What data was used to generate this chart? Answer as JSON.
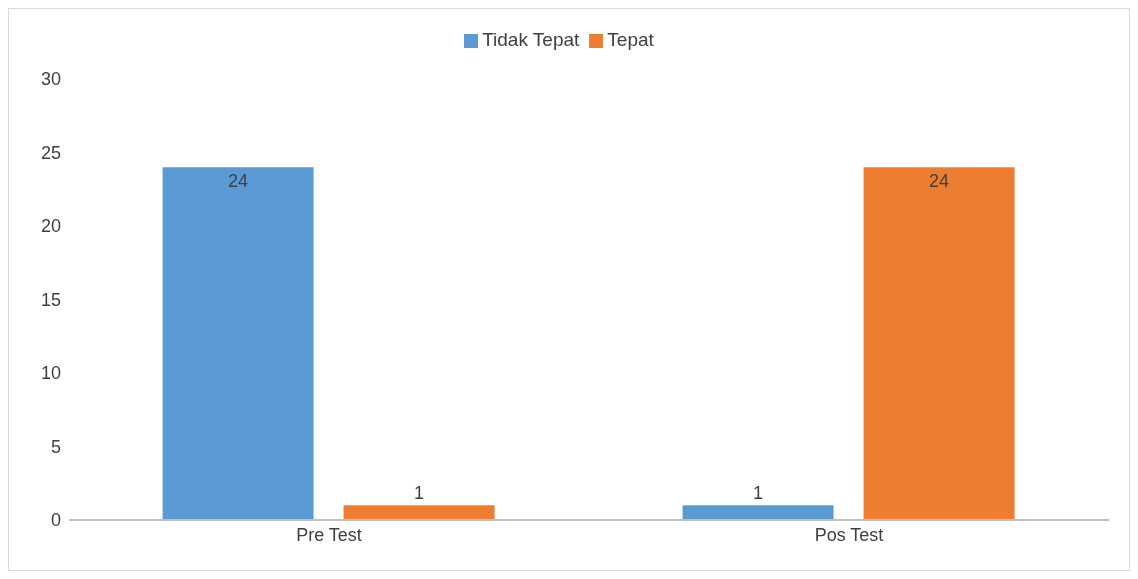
{
  "chart_data": {
    "type": "bar",
    "categories": [
      "Pre Test",
      "Pos Test"
    ],
    "series": [
      {
        "name": "Tidak Tepat",
        "color": "#5b9bd5",
        "values": [
          24,
          1
        ]
      },
      {
        "name": "Tepat",
        "color": "#ed7d31",
        "values": [
          1,
          24
        ]
      }
    ],
    "ylim": [
      0,
      30
    ],
    "yticks": [
      0,
      5,
      10,
      15,
      20,
      25,
      30
    ],
    "grid": false,
    "legend": "top",
    "data_labels": true
  }
}
